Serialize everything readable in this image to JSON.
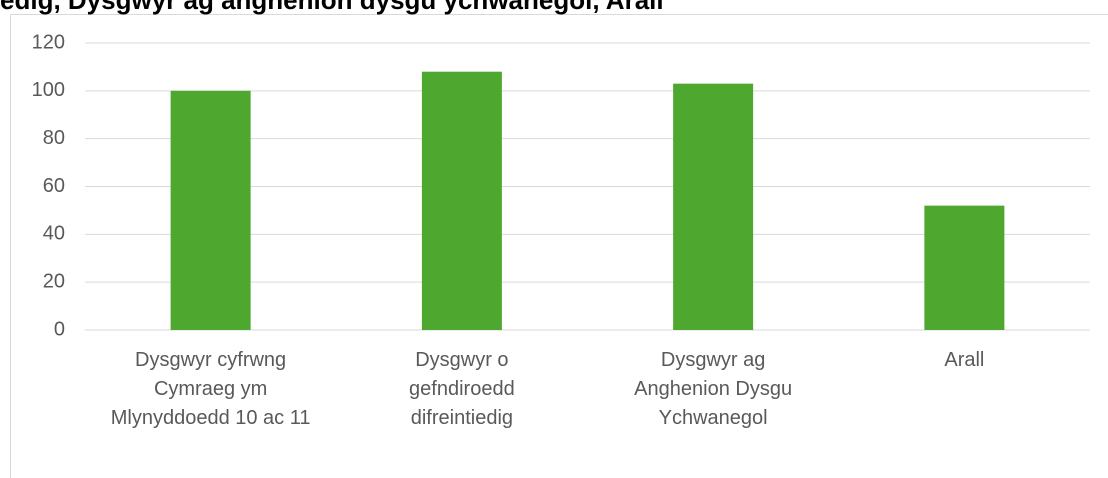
{
  "chart_data": {
    "type": "bar",
    "title": "edig, Dysgwyr ag anghenion dysgu ychwanegol, Arall",
    "categories": [
      "Dysgwyr cyfrwng Cymraeg ym Mlynyddoedd 10 ac 11",
      "Dysgwyr o gefndiroedd difreintiedig",
      "Dysgwyr ag Anghenion Dysgu Ychwanegol",
      "Arall"
    ],
    "values": [
      100,
      108,
      103,
      52
    ],
    "color": "#4ea72e",
    "ylim": [
      0,
      120
    ],
    "yticks": [
      0,
      20,
      40,
      60,
      80,
      100,
      120
    ],
    "grid": true
  }
}
